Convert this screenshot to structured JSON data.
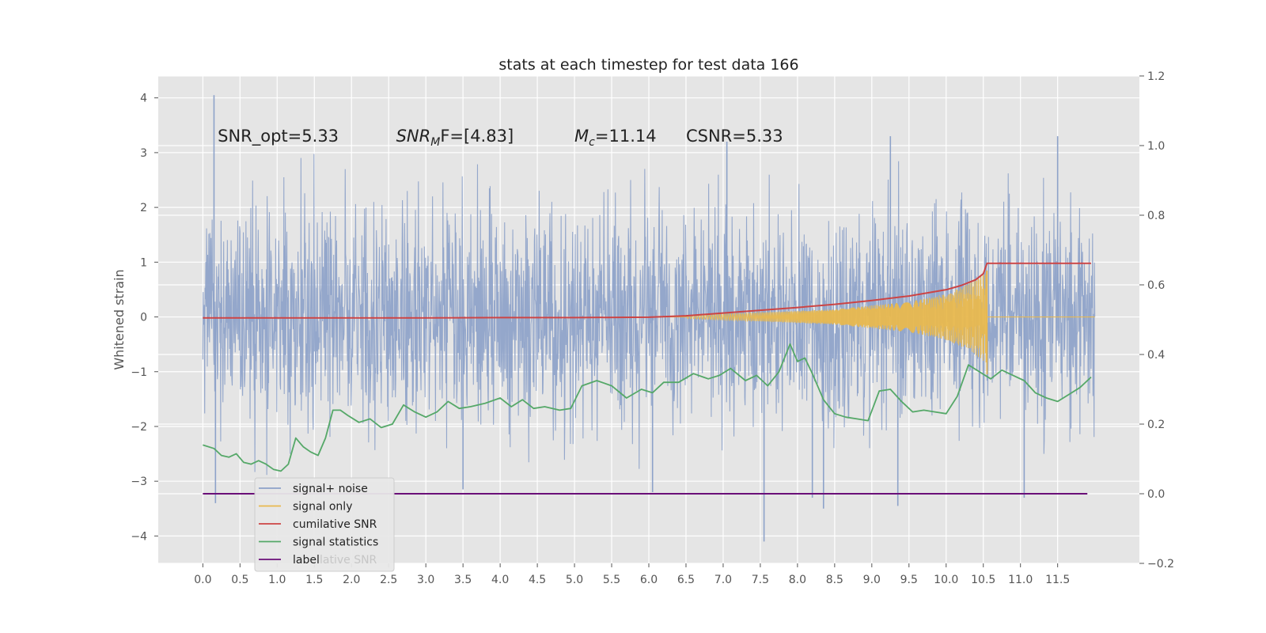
{
  "chart_data": {
    "type": "line",
    "title": "stats at each timestep for test data 166",
    "ylabel": "Whitened strain",
    "xlim": [
      -0.6,
      12.6
    ],
    "ylim": [
      -4.5,
      4.4
    ],
    "y2lim": [
      -0.2,
      1.2
    ],
    "grid": true,
    "legend_position": "lower-left",
    "x_ticks": [
      "0.0",
      "0.5",
      "1.0",
      "1.5",
      "2.0",
      "2.5",
      "3.0",
      "3.5",
      "4.0",
      "4.5",
      "5.0",
      "5.5",
      "6.0",
      "6.5",
      "7.0",
      "7.5",
      "8.0",
      "8.5",
      "9.0",
      "9.5",
      "10.0",
      "10.5",
      "11.0",
      "11.5"
    ],
    "y_ticks": [
      "4",
      "3",
      "2",
      "1",
      "0",
      "−1",
      "−2",
      "−3",
      "−4"
    ],
    "y2_ticks": [
      "1.2",
      "1.0",
      "0.8",
      "0.6",
      "0.4",
      "0.2",
      "0.0",
      "−0.2"
    ],
    "annotations": [
      {
        "text": "SNR_opt=5.33",
        "x": 0.2,
        "y": 3.3
      },
      {
        "text": "SNR",
        "sub": "M",
        "rest": "F=[4.83]",
        "x": 2.6,
        "y": 3.3
      },
      {
        "text": "M",
        "sub": "c",
        "rest": "=11.14",
        "x": 5.0,
        "y": 3.3
      },
      {
        "text": "CSNR=5.33",
        "x": 6.5,
        "y": 3.3
      }
    ],
    "series": [
      {
        "name": "signal+ noise",
        "color": "#8da2c9",
        "axis": "left",
        "t_start": 0.0,
        "t_end": 12.0,
        "envelope_std": 0.98,
        "peaks": [
          {
            "x": 0.15,
            "y": 4.05
          },
          {
            "x": 0.17,
            "y": -3.4
          },
          {
            "x": 3.5,
            "y": -3.15
          },
          {
            "x": 6.05,
            "y": -3.2
          },
          {
            "x": 7.05,
            "y": 3.2
          },
          {
            "x": 7.55,
            "y": -4.1
          },
          {
            "x": 8.2,
            "y": -3.3
          },
          {
            "x": 8.35,
            "y": -3.5
          },
          {
            "x": 9.25,
            "y": 3.3
          },
          {
            "x": 9.35,
            "y": -3.45
          },
          {
            "x": 11.05,
            "y": -3.3
          },
          {
            "x": 11.5,
            "y": 3.3
          }
        ]
      },
      {
        "name": "signal only",
        "color": "#e8b84e",
        "axis": "left",
        "chirp_amplitude": [
          [
            6.5,
            0.03
          ],
          [
            7.5,
            0.08
          ],
          [
            8.5,
            0.14
          ],
          [
            9.5,
            0.28
          ],
          [
            10.0,
            0.42
          ],
          [
            10.3,
            0.6
          ],
          [
            10.55,
            0.85
          ]
        ],
        "merger_time": 10.55
      },
      {
        "name": "cumilative SNR",
        "color": "#cc4444",
        "axis": "right",
        "x": [
          0.0,
          1.0,
          2.0,
          3.0,
          4.0,
          5.0,
          6.0,
          6.5,
          7.0,
          7.5,
          8.0,
          8.5,
          9.0,
          9.5,
          10.0,
          10.2,
          10.4,
          10.5,
          10.55,
          11.0,
          11.5,
          11.95
        ],
        "values": [
          0.505,
          0.505,
          0.505,
          0.505,
          0.506,
          0.506,
          0.507,
          0.511,
          0.519,
          0.527,
          0.535,
          0.544,
          0.555,
          0.568,
          0.586,
          0.598,
          0.615,
          0.632,
          0.662,
          0.662,
          0.662,
          0.662
        ]
      },
      {
        "name": "signal statistics",
        "color": "#55a868",
        "axis": "right",
        "x": [
          0.0,
          0.15,
          0.25,
          0.35,
          0.45,
          0.55,
          0.65,
          0.75,
          0.85,
          0.95,
          1.05,
          1.15,
          1.25,
          1.35,
          1.45,
          1.55,
          1.65,
          1.75,
          1.85,
          1.95,
          2.1,
          2.25,
          2.4,
          2.55,
          2.7,
          2.85,
          3.0,
          3.15,
          3.3,
          3.45,
          3.6,
          3.8,
          4.0,
          4.15,
          4.3,
          4.45,
          4.6,
          4.8,
          4.95,
          5.1,
          5.3,
          5.5,
          5.7,
          5.9,
          6.05,
          6.2,
          6.4,
          6.6,
          6.8,
          6.95,
          7.1,
          7.3,
          7.45,
          7.6,
          7.75,
          7.9,
          8.0,
          8.1,
          8.2,
          8.35,
          8.5,
          8.65,
          8.8,
          8.95,
          9.1,
          9.25,
          9.4,
          9.55,
          9.7,
          9.85,
          10.0,
          10.15,
          10.3,
          10.45,
          10.6,
          10.75,
          10.9,
          11.05,
          11.2,
          11.35,
          11.5,
          11.65,
          11.8,
          11.95
        ],
        "values": [
          0.14,
          0.13,
          0.11,
          0.105,
          0.115,
          0.09,
          0.085,
          0.095,
          0.085,
          0.07,
          0.065,
          0.085,
          0.16,
          0.135,
          0.12,
          0.11,
          0.16,
          0.24,
          0.24,
          0.225,
          0.205,
          0.215,
          0.19,
          0.2,
          0.255,
          0.235,
          0.22,
          0.235,
          0.265,
          0.245,
          0.25,
          0.26,
          0.275,
          0.25,
          0.27,
          0.245,
          0.25,
          0.24,
          0.245,
          0.31,
          0.325,
          0.31,
          0.275,
          0.3,
          0.29,
          0.32,
          0.32,
          0.345,
          0.33,
          0.34,
          0.36,
          0.325,
          0.34,
          0.31,
          0.35,
          0.43,
          0.38,
          0.39,
          0.345,
          0.27,
          0.23,
          0.22,
          0.215,
          0.21,
          0.295,
          0.3,
          0.265,
          0.235,
          0.24,
          0.235,
          0.23,
          0.28,
          0.37,
          0.35,
          0.33,
          0.355,
          0.34,
          0.325,
          0.29,
          0.275,
          0.265,
          0.285,
          0.305,
          0.335
        ]
      },
      {
        "name": "label",
        "color": "#6a0f78",
        "axis": "right",
        "x": [
          0.0,
          11.9
        ],
        "values": [
          0.0,
          0.0
        ]
      }
    ],
    "legend_partial": {
      "hidden_text": "Cumulative SNR",
      "visible_suffix": "lative SNR"
    }
  }
}
